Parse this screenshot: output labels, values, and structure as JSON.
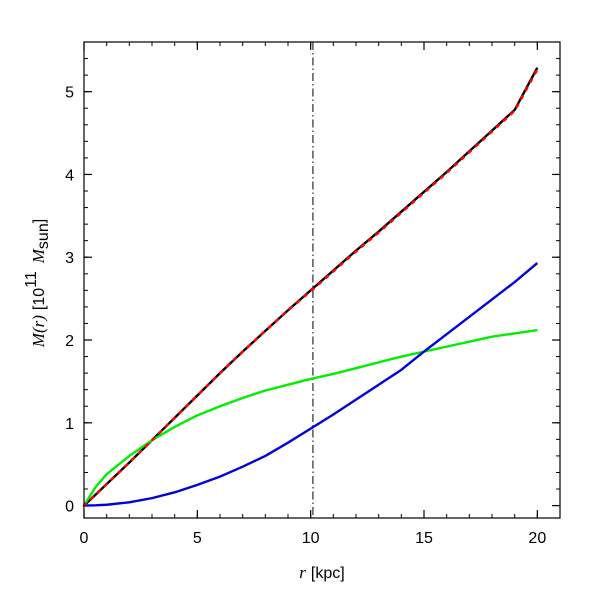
{
  "chart_data": {
    "type": "line",
    "xlabel": {
      "var": "r",
      "unit": "[kpc]"
    },
    "ylabel": {
      "var": "M(r)",
      "unit_prefix": "[10",
      "unit_exp": "11",
      "unit_sym": "M",
      "unit_sub": "sun",
      "unit_close": "]"
    },
    "xlim": [
      0,
      21
    ],
    "ylim": [
      -0.15,
      5.6
    ],
    "xticks": [
      0,
      5,
      10,
      15,
      20
    ],
    "xtick_labels": [
      "0",
      "5",
      "10",
      "15",
      "20"
    ],
    "yticks": [
      0,
      1,
      2,
      3,
      4,
      5
    ],
    "ytick_labels": [
      "0",
      "1",
      "2",
      "3",
      "4",
      "5"
    ],
    "x_minor_step": 1,
    "y_minor_step": 0.2,
    "grid": false,
    "vline": {
      "x": 10.1,
      "color": "#000000",
      "style": "dashdot"
    },
    "series": [
      {
        "color": "#ff0000",
        "style": "dotted",
        "x": [
          0,
          0.5,
          1,
          2,
          3,
          4,
          5,
          6,
          7,
          8,
          9,
          10,
          11,
          12,
          13,
          14,
          15,
          16,
          17,
          18,
          19,
          20
        ],
        "y": [
          0,
          0.13,
          0.26,
          0.52,
          0.79,
          1.06,
          1.33,
          1.6,
          1.86,
          2.11,
          2.36,
          2.59,
          2.83,
          3.07,
          3.3,
          3.54,
          3.78,
          4.02,
          4.27,
          4.52,
          4.77,
          5.27
        ]
      },
      {
        "color": "#000000",
        "style": "solid",
        "x": [
          0,
          0.5,
          1,
          2,
          3,
          4,
          5,
          6,
          7,
          8,
          9,
          10,
          11,
          12,
          13,
          14,
          15,
          16,
          17,
          18,
          19,
          20
        ],
        "y": [
          0,
          0.13,
          0.26,
          0.52,
          0.79,
          1.06,
          1.33,
          1.6,
          1.86,
          2.11,
          2.36,
          2.6,
          2.84,
          3.08,
          3.31,
          3.55,
          3.79,
          4.03,
          4.28,
          4.53,
          4.78,
          5.29
        ]
      },
      {
        "color": "#00ee00",
        "style": "solid",
        "x": [
          0,
          0.5,
          1,
          2,
          3,
          4,
          5,
          6,
          7,
          8,
          9,
          10,
          11,
          12,
          13,
          14,
          15,
          16,
          17,
          18,
          19,
          20
        ],
        "y": [
          0,
          0.22,
          0.38,
          0.6,
          0.79,
          0.95,
          1.09,
          1.2,
          1.3,
          1.39,
          1.46,
          1.53,
          1.59,
          1.66,
          1.73,
          1.8,
          1.86,
          1.92,
          1.98,
          2.04,
          2.08,
          2.12
        ]
      },
      {
        "color": "#0000dd",
        "style": "solid",
        "x": [
          0,
          0.5,
          1,
          2,
          3,
          4,
          5,
          6,
          7,
          8,
          9,
          10,
          11,
          12,
          13,
          14,
          15,
          16,
          17,
          18,
          19,
          20
        ],
        "y": [
          0,
          0.003,
          0.01,
          0.04,
          0.09,
          0.16,
          0.25,
          0.35,
          0.47,
          0.6,
          0.76,
          0.93,
          1.1,
          1.28,
          1.46,
          1.64,
          1.86,
          2.07,
          2.28,
          2.49,
          2.7,
          2.93
        ]
      }
    ]
  }
}
